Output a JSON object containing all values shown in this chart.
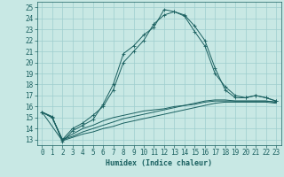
{
  "xlabel": "Humidex (Indice chaleur)",
  "xlim": [
    -0.5,
    23.5
  ],
  "ylim": [
    12.5,
    25.5
  ],
  "yticks": [
    13,
    14,
    15,
    16,
    17,
    18,
    19,
    20,
    21,
    22,
    23,
    24,
    25
  ],
  "xticks": [
    0,
    1,
    2,
    3,
    4,
    5,
    6,
    7,
    8,
    9,
    10,
    11,
    12,
    13,
    14,
    15,
    16,
    17,
    18,
    19,
    20,
    21,
    22,
    23
  ],
  "bg_color": "#c8e8e4",
  "grid_color": "#9ecece",
  "line_color": "#1a6060",
  "lines": [
    {
      "x": [
        0,
        1,
        2,
        3,
        4,
        5,
        6,
        7,
        8,
        9,
        10,
        11,
        12,
        13,
        14,
        15,
        16,
        17,
        18,
        19,
        20,
        21,
        22,
        23
      ],
      "y": [
        15.5,
        15.1,
        12.8,
        13.8,
        14.3,
        14.8,
        16.2,
        18.0,
        20.8,
        21.5,
        22.5,
        23.2,
        24.8,
        24.6,
        24.3,
        23.3,
        22.0,
        19.5,
        17.5,
        16.8,
        16.8,
        17.0,
        16.8,
        16.5
      ],
      "marker": "+"
    },
    {
      "x": [
        0,
        1,
        2,
        3,
        4,
        5,
        6,
        7,
        8,
        9,
        10,
        11,
        12,
        13,
        14,
        15,
        16,
        17,
        18,
        19,
        20,
        21,
        22,
        23
      ],
      "y": [
        15.5,
        15.0,
        13.0,
        14.0,
        14.5,
        15.2,
        16.0,
        17.5,
        20.0,
        21.0,
        22.0,
        23.5,
        24.3,
        24.6,
        24.2,
        22.8,
        21.5,
        19.0,
        17.8,
        17.0,
        16.8,
        17.0,
        16.8,
        16.5
      ],
      "marker": "+"
    },
    {
      "x": [
        0,
        1,
        2,
        3,
        4,
        5,
        6,
        7,
        8,
        9,
        10,
        11,
        12,
        13,
        14,
        15,
        16,
        17,
        18,
        19,
        20,
        21,
        22,
        23
      ],
      "y": [
        15.5,
        15.0,
        13.0,
        13.5,
        14.0,
        14.3,
        14.7,
        15.0,
        15.2,
        15.4,
        15.6,
        15.7,
        15.8,
        16.0,
        16.1,
        16.3,
        16.5,
        16.6,
        16.6,
        16.5,
        16.5,
        16.5,
        16.5,
        16.4
      ],
      "marker": null
    },
    {
      "x": [
        0,
        1,
        2,
        3,
        4,
        5,
        6,
        7,
        8,
        9,
        10,
        11,
        12,
        13,
        14,
        15,
        16,
        17,
        18,
        19,
        20,
        21,
        22,
        23
      ],
      "y": [
        15.5,
        15.0,
        13.0,
        13.3,
        13.7,
        14.0,
        14.3,
        14.6,
        14.9,
        15.1,
        15.3,
        15.5,
        15.7,
        15.9,
        16.1,
        16.2,
        16.4,
        16.5,
        16.5,
        16.5,
        16.5,
        16.5,
        16.5,
        16.4
      ],
      "marker": null
    },
    {
      "x": [
        0,
        2,
        3,
        4,
        5,
        6,
        7,
        8,
        9,
        10,
        11,
        12,
        13,
        14,
        15,
        16,
        17,
        18,
        19,
        20,
        21,
        22,
        23
      ],
      "y": [
        15.5,
        12.9,
        13.2,
        13.5,
        13.7,
        14.0,
        14.2,
        14.5,
        14.7,
        14.9,
        15.1,
        15.3,
        15.5,
        15.7,
        15.9,
        16.1,
        16.3,
        16.4,
        16.4,
        16.4,
        16.4,
        16.4,
        16.3
      ],
      "marker": null
    }
  ],
  "font_size": 5.5,
  "tick_font_size": 5.5,
  "xlabel_fontsize": 6.0
}
